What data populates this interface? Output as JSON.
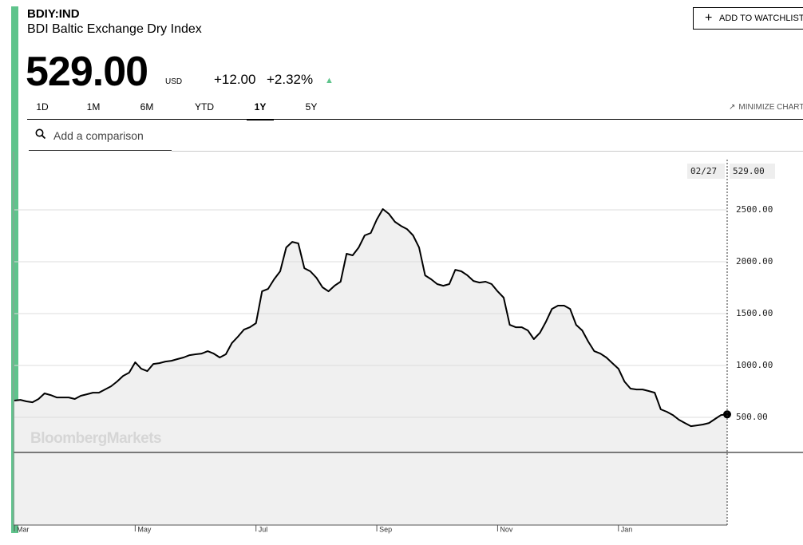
{
  "header": {
    "ticker": "BDIY:IND",
    "name": "BDI Baltic Exchange Dry Index",
    "price": "529.00",
    "currency": "USD",
    "change": "+12.00",
    "change_percent": "+2.32%",
    "watchlist_button": "ADD TO WATCHLIST",
    "tabs": [
      "1D",
      "1M",
      "6M",
      "YTD",
      "1Y",
      "5Y"
    ],
    "minimize": "MINIMIZE CHART",
    "search_placeholder": "Add a comparison"
  },
  "chart_data": {
    "type": "line",
    "watermark": "BloombergMarkets",
    "cursor_date": "02/27",
    "cursor_label": "529.00",
    "categories": [
      "Mar",
      null,
      null,
      null,
      null,
      null,
      null,
      null,
      null,
      null,
      null,
      null,
      null,
      null,
      null,
      null,
      null,
      null,
      null,
      null,
      "May",
      null,
      null,
      null,
      null,
      null,
      null,
      null,
      null,
      null,
      null,
      null,
      null,
      null,
      null,
      null,
      null,
      null,
      null,
      null,
      "Jul",
      null,
      null,
      null,
      null,
      null,
      null,
      null,
      null,
      null,
      null,
      null,
      null,
      null,
      null,
      null,
      null,
      null,
      null,
      null,
      "Sep",
      null,
      null,
      null,
      null,
      null,
      null,
      null,
      null,
      null,
      null,
      null,
      null,
      null,
      null,
      null,
      null,
      null,
      null,
      null,
      "Nov",
      null,
      null,
      null,
      null,
      null,
      null,
      null,
      null,
      null,
      null,
      null,
      null,
      null,
      null,
      null,
      null,
      null,
      null,
      null,
      "Jan",
      null,
      null,
      null,
      null,
      null,
      null,
      null,
      null,
      null,
      null,
      null,
      null,
      null,
      null,
      null,
      null,
      null,
      null
    ],
    "series": [
      {
        "name": "BDIY:IND",
        "color": "#000000",
        "values": [
          662,
          669,
          654,
          646,
          677,
          731,
          715,
          692,
          692,
          692,
          677,
          708,
          723,
          738,
          738,
          769,
          800,
          846,
          900,
          931,
          1031,
          969,
          946,
          1015,
          1023,
          1038,
          1046,
          1062,
          1077,
          1100,
          1108,
          1115,
          1138,
          1115,
          1077,
          1108,
          1215,
          1277,
          1346,
          1369,
          1408,
          1715,
          1738,
          1831,
          1908,
          2138,
          2192,
          2177,
          1938,
          1908,
          1846,
          1754,
          1715,
          1769,
          1808,
          2077,
          2062,
          2138,
          2254,
          2277,
          2408,
          2508,
          2462,
          2385,
          2346,
          2315,
          2254,
          2138,
          1869,
          1831,
          1785,
          1769,
          1785,
          1923,
          1908,
          1869,
          1815,
          1800,
          1808,
          1785,
          1715,
          1654,
          1392,
          1369,
          1369,
          1338,
          1254,
          1315,
          1423,
          1546,
          1577,
          1577,
          1546,
          1392,
          1338,
          1231,
          1138,
          1115,
          1077,
          1023,
          969,
          846,
          777,
          769,
          769,
          754,
          738,
          577,
          554,
          523,
          477,
          446,
          415,
          423,
          431,
          446,
          485,
          523,
          529
        ]
      }
    ],
    "area_color": "#f0f0f0",
    "ylim": [
      -538,
      2985
    ],
    "yticks": [
      {
        "value": 500,
        "label": "500.00"
      },
      {
        "value": 1000,
        "label": "1000.00"
      },
      {
        "value": 1500,
        "label": "1500.00"
      },
      {
        "value": 2000,
        "label": "2000.00"
      },
      {
        "value": 2500,
        "label": "2500.00"
      }
    ],
    "grid": true
  }
}
